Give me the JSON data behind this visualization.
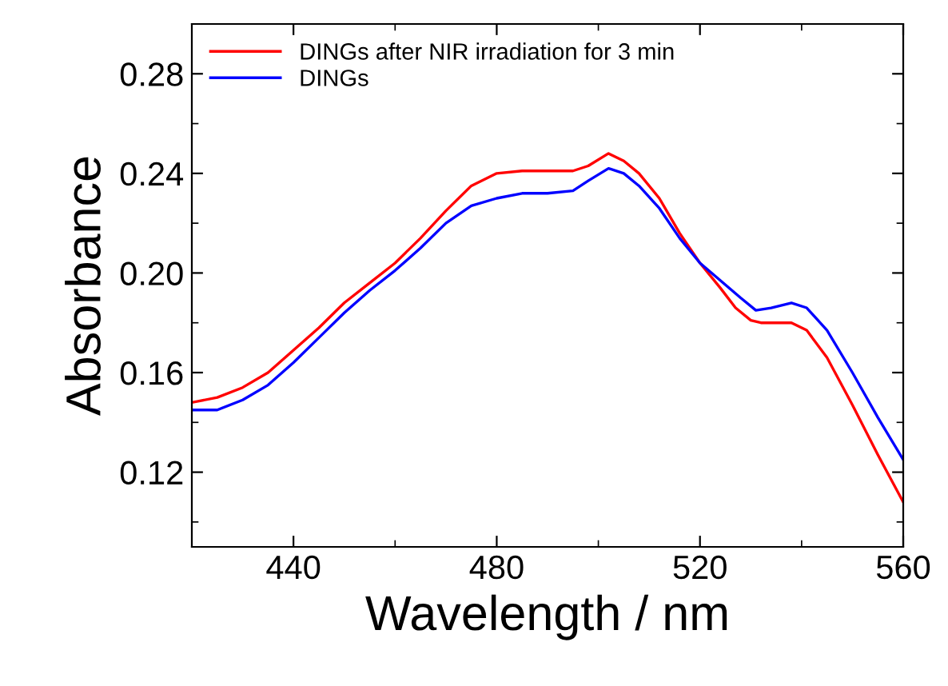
{
  "chart_data": {
    "type": "line",
    "xlabel": "Wavelength / nm",
    "ylabel": "Absorbance",
    "xlim": [
      420,
      560
    ],
    "xticks": [
      440,
      480,
      520,
      560
    ],
    "ylim": [
      0.09,
      0.3
    ],
    "yticks": [
      {
        "value": 0.12,
        "label": "0.12"
      },
      {
        "value": 0.16,
        "label": "0.16"
      },
      {
        "value": 0.2,
        "label": "0.20"
      },
      {
        "value": 0.24,
        "label": "0.24"
      },
      {
        "value": 0.28,
        "label": "0.28"
      }
    ],
    "grid": false,
    "legend": "top left",
    "marker": "none",
    "line_style": "solid",
    "series": [
      {
        "name": "DINGs after NIR irradiation for 3 min",
        "color": "#ff0000",
        "x": [
          420,
          425,
          430,
          435,
          440,
          445,
          450,
          455,
          460,
          465,
          470,
          475,
          480,
          485,
          490,
          495,
          498,
          502,
          505,
          508,
          512,
          516,
          520,
          524,
          527,
          530,
          532,
          538,
          541,
          545,
          550,
          555,
          560
        ],
        "values": [
          0.148,
          0.15,
          0.154,
          0.16,
          0.169,
          0.178,
          0.188,
          0.196,
          0.204,
          0.214,
          0.225,
          0.235,
          0.24,
          0.241,
          0.241,
          0.241,
          0.243,
          0.248,
          0.245,
          0.24,
          0.23,
          0.216,
          0.204,
          0.194,
          0.186,
          0.181,
          0.18,
          0.18,
          0.177,
          0.166,
          0.147,
          0.127,
          0.108
        ]
      },
      {
        "name": "DINGs",
        "color": "#0000ff",
        "x": [
          420,
          425,
          430,
          435,
          440,
          445,
          450,
          455,
          460,
          465,
          470,
          475,
          480,
          485,
          490,
          495,
          498,
          502,
          505,
          508,
          512,
          516,
          520,
          524,
          528,
          531,
          534,
          538,
          541,
          545,
          550,
          555,
          560
        ],
        "values": [
          0.145,
          0.145,
          0.149,
          0.155,
          0.164,
          0.174,
          0.184,
          0.193,
          0.201,
          0.21,
          0.22,
          0.227,
          0.23,
          0.232,
          0.232,
          0.233,
          0.237,
          0.242,
          0.24,
          0.235,
          0.226,
          0.214,
          0.204,
          0.197,
          0.19,
          0.185,
          0.186,
          0.188,
          0.186,
          0.177,
          0.16,
          0.142,
          0.125
        ]
      }
    ]
  }
}
